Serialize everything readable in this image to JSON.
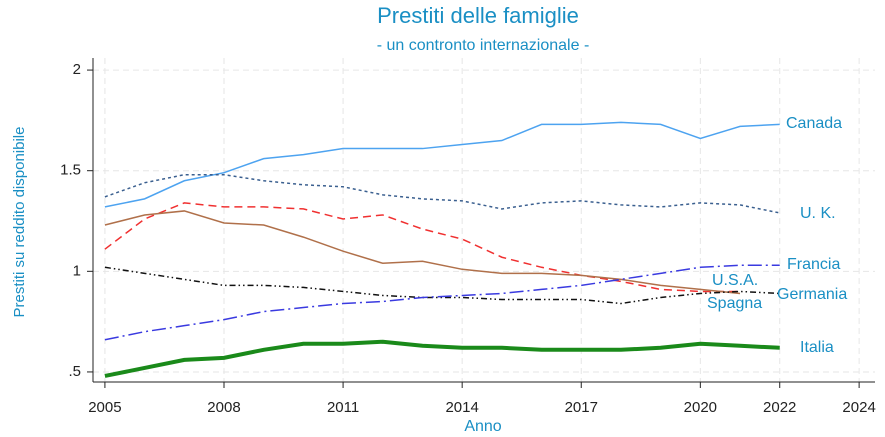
{
  "chart_data": {
    "type": "line",
    "title": "Prestiti delle famiglie",
    "subtitle": "- un contronto internazionale -",
    "x_label": "Anno",
    "y_label": "Prestiti su reddito disponibile",
    "x": [
      2005,
      2006,
      2007,
      2008,
      2009,
      2010,
      2011,
      2012,
      2013,
      2014,
      2015,
      2016,
      2017,
      2018,
      2019,
      2020,
      2021,
      2022
    ],
    "xlim": [
      2004.7,
      2024.4
    ],
    "xticks": [
      2005,
      2008,
      2011,
      2014,
      2017,
      2020,
      2022,
      2024
    ],
    "ylim": [
      0.45,
      2.06
    ],
    "yticks": [
      {
        "value": 0.5,
        "label": ".5"
      },
      1,
      1.5,
      2
    ],
    "grid": true,
    "series": [
      {
        "name": "Canada",
        "color": "#4da3f0",
        "values": [
          1.32,
          1.36,
          1.45,
          1.49,
          1.56,
          1.58,
          1.61,
          1.61,
          1.61,
          1.63,
          1.65,
          1.73,
          1.73,
          1.74,
          1.73,
          1.66,
          1.72,
          1.73
        ]
      },
      {
        "name": "U. K.",
        "color": "#3a5f8f",
        "values": [
          1.37,
          1.44,
          1.48,
          1.48,
          1.45,
          1.43,
          1.42,
          1.38,
          1.36,
          1.35,
          1.31,
          1.34,
          1.35,
          1.33,
          1.32,
          1.34,
          1.33,
          1.29
        ]
      },
      {
        "name": "U.S.A.",
        "color": "#f03030",
        "values": [
          1.11,
          1.26,
          1.34,
          1.32,
          1.32,
          1.31,
          1.26,
          1.28,
          1.21,
          1.16,
          1.07,
          1.02,
          0.98,
          0.95,
          0.91,
          0.9,
          0.9,
          null
        ]
      },
      {
        "name": "Spagna",
        "color": "#b0704a",
        "values": [
          1.23,
          1.28,
          1.3,
          1.24,
          1.23,
          1.17,
          1.1,
          1.04,
          1.05,
          1.01,
          0.99,
          0.99,
          0.98,
          0.96,
          0.93,
          0.91,
          0.89,
          null
        ]
      },
      {
        "name": "Germania",
        "color": "#111111",
        "values": [
          1.02,
          0.99,
          0.96,
          0.93,
          0.93,
          0.92,
          0.9,
          0.88,
          0.87,
          0.87,
          0.86,
          0.86,
          0.86,
          0.84,
          0.87,
          0.89,
          0.9,
          0.89
        ]
      },
      {
        "name": "Francia",
        "color": "#3a3ae0",
        "values": [
          0.66,
          0.7,
          0.73,
          0.76,
          0.8,
          0.82,
          0.84,
          0.85,
          0.87,
          0.88,
          0.89,
          0.91,
          0.93,
          0.96,
          0.99,
          1.02,
          1.03,
          1.03
        ]
      },
      {
        "name": "Italia",
        "color": "#1a8a1a",
        "values": [
          0.48,
          0.52,
          0.56,
          0.57,
          0.61,
          0.64,
          0.64,
          0.65,
          0.63,
          0.62,
          0.62,
          0.61,
          0.61,
          0.61,
          0.62,
          0.64,
          0.63,
          0.62
        ]
      }
    ]
  }
}
